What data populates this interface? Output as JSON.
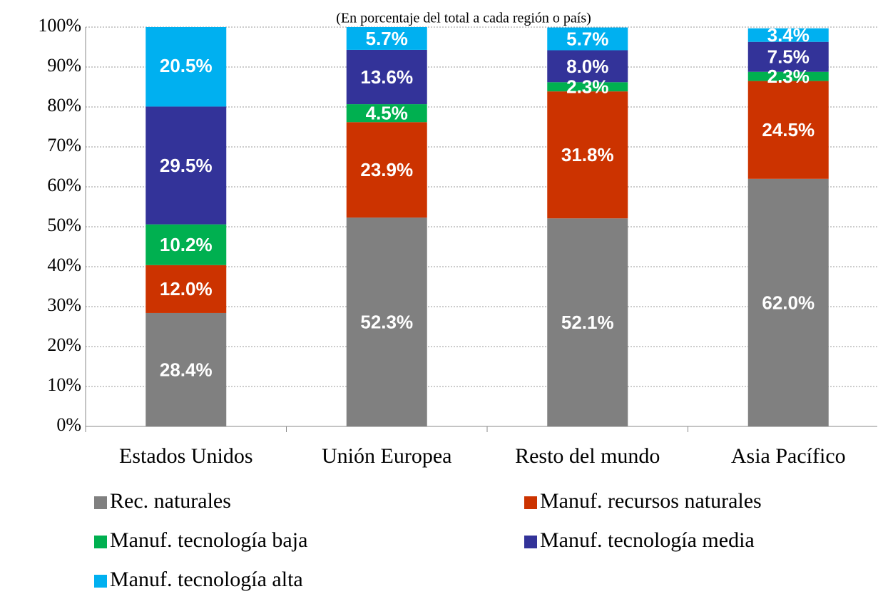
{
  "chart_data": {
    "type": "stacked_bar",
    "subtitle": "(En porcentaje del total a cada región o país)",
    "categories": [
      "Estados Unidos",
      "Unión Europea",
      "Resto del mundo",
      "Asia Pacífico"
    ],
    "series": [
      {
        "name": "Rec. naturales",
        "color": "#808080",
        "values": [
          28.4,
          52.3,
          52.1,
          62.0
        ],
        "value_labels": [
          "28.4%",
          "52.3%",
          "52.1%",
          "62.0%"
        ]
      },
      {
        "name": "Manuf. recursos naturales",
        "color": "#cc3300",
        "values": [
          12.0,
          23.9,
          31.8,
          24.5
        ],
        "value_labels": [
          "12.0%",
          "23.9%",
          "31.8%",
          "24.5%"
        ]
      },
      {
        "name": "Manuf. tecnología baja",
        "color": "#00b050",
        "values": [
          10.2,
          4.5,
          2.3,
          2.3
        ],
        "value_labels": [
          "10.2%",
          "4.5%",
          "2.3%",
          "2.3%"
        ]
      },
      {
        "name": "Manuf. tecnología media",
        "color": "#333399",
        "values": [
          29.5,
          13.6,
          8.0,
          7.5
        ],
        "value_labels": [
          "29.5%",
          "13.6%",
          "8.0%",
          "7.5%"
        ]
      },
      {
        "name": "Manuf. tecnología alta",
        "color": "#00b0f0",
        "values": [
          20.5,
          5.7,
          5.7,
          3.4
        ],
        "value_labels": [
          "20.5%",
          "5.7%",
          "5.7%",
          "3.4%"
        ]
      }
    ],
    "ylim": [
      0,
      100
    ],
    "yticks": [
      {
        "value": 0,
        "label": "0%"
      },
      {
        "value": 10,
        "label": "10%"
      },
      {
        "value": 20,
        "label": "20%"
      },
      {
        "value": 30,
        "label": "30%"
      },
      {
        "value": 40,
        "label": "40%"
      },
      {
        "value": 50,
        "label": "50%"
      },
      {
        "value": 60,
        "label": "60%"
      },
      {
        "value": 70,
        "label": "70%"
      },
      {
        "value": 80,
        "label": "80%"
      },
      {
        "value": 90,
        "label": "90%"
      },
      {
        "value": 100,
        "label": "100%"
      }
    ],
    "grid": true,
    "legend": "bottom"
  }
}
